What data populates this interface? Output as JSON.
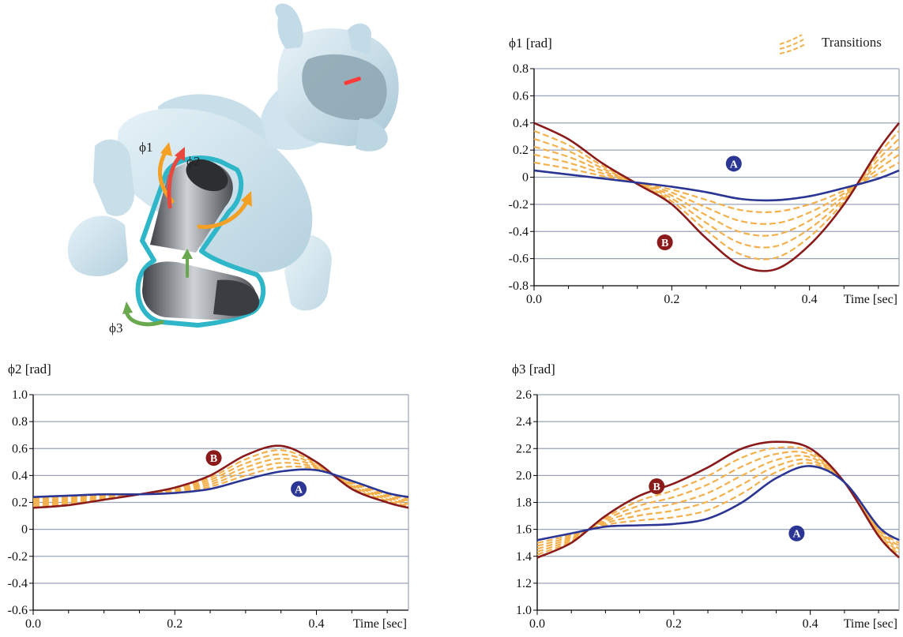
{
  "figure": {
    "robot": {
      "joint_labels": [
        "ϕ1",
        "ϕ2",
        "ϕ3"
      ],
      "colors": {
        "body": "#cfe4ee",
        "body_shade": "#a9c8d8",
        "leg_outline": "#2fb6c8",
        "leg_metal": "#5c6065",
        "arrow_orange": "#f4a024",
        "arrow_red": "#e8483e",
        "arrow_green": "#6aa84f"
      }
    },
    "legend": {
      "label": "Transitions"
    }
  },
  "chart_data": [
    {
      "type": "line",
      "id": "phi1",
      "ylabel": "ϕ1 [rad]",
      "xlabel": "Time [sec]",
      "xlim": [
        0,
        0.53
      ],
      "ylim": [
        -0.8,
        0.8
      ],
      "yticks": [
        -0.8,
        -0.6,
        -0.4,
        -0.2,
        0,
        0.2,
        0.4,
        0.6,
        0.8
      ],
      "ytick_labels": [
        "-0.8",
        "-0.6",
        "-0.4",
        "-0.2",
        "0",
        "0.2",
        "0.4",
        "0.6",
        "0.8"
      ],
      "xticks": [
        0,
        0.2,
        0.4
      ],
      "xtick_labels": [
        "0.0",
        "0.2",
        "0.4"
      ],
      "grid": true,
      "transition_count": 5,
      "series": [
        {
          "name": "A",
          "color": "#2b3594",
          "x": [
            0,
            0.05,
            0.1,
            0.15,
            0.2,
            0.25,
            0.3,
            0.35,
            0.4,
            0.45,
            0.5,
            0.53
          ],
          "y": [
            0.05,
            0.02,
            -0.01,
            -0.04,
            -0.07,
            -0.11,
            -0.16,
            -0.17,
            -0.14,
            -0.08,
            -0.01,
            0.05
          ]
        },
        {
          "name": "B",
          "color": "#8b1a1a",
          "x": [
            0,
            0.05,
            0.1,
            0.15,
            0.2,
            0.25,
            0.3,
            0.35,
            0.4,
            0.45,
            0.5,
            0.53
          ],
          "y": [
            0.4,
            0.28,
            0.1,
            -0.05,
            -0.2,
            -0.45,
            -0.65,
            -0.68,
            -0.5,
            -0.2,
            0.2,
            0.4
          ]
        }
      ],
      "markers": [
        {
          "label": "A",
          "series": "A",
          "x": 0.29,
          "y": 0.1
        },
        {
          "label": "B",
          "series": "B",
          "x": 0.19,
          "y": -0.48
        }
      ]
    },
    {
      "type": "line",
      "id": "phi2",
      "ylabel": "ϕ2 [rad]",
      "xlabel": "Time [sec]",
      "xlim": [
        0,
        0.53
      ],
      "ylim": [
        -0.6,
        1.0
      ],
      "yticks": [
        -0.6,
        -0.4,
        -0.2,
        0,
        0.2,
        0.4,
        0.6,
        0.8,
        1.0
      ],
      "ytick_labels": [
        "-0.6",
        "-0.4",
        "-0.2",
        "0",
        "0.2",
        "0.4",
        "0.6",
        "0.8",
        "1.0"
      ],
      "xticks": [
        0,
        0.2,
        0.4
      ],
      "xtick_labels": [
        "0.0",
        "0.2",
        "0.4"
      ],
      "grid": true,
      "transition_count": 5,
      "series": [
        {
          "name": "A",
          "color": "#2b3594",
          "x": [
            0,
            0.05,
            0.1,
            0.15,
            0.2,
            0.25,
            0.3,
            0.35,
            0.4,
            0.45,
            0.5,
            0.53
          ],
          "y": [
            0.24,
            0.25,
            0.26,
            0.26,
            0.27,
            0.3,
            0.37,
            0.43,
            0.44,
            0.36,
            0.27,
            0.24
          ]
        },
        {
          "name": "B",
          "color": "#8b1a1a",
          "x": [
            0,
            0.05,
            0.1,
            0.15,
            0.2,
            0.25,
            0.3,
            0.35,
            0.4,
            0.45,
            0.5,
            0.53
          ],
          "y": [
            0.16,
            0.18,
            0.22,
            0.26,
            0.31,
            0.4,
            0.55,
            0.62,
            0.5,
            0.3,
            0.2,
            0.16
          ]
        }
      ],
      "markers": [
        {
          "label": "B",
          "series": "B",
          "x": 0.255,
          "y": 0.53
        },
        {
          "label": "A",
          "series": "A",
          "x": 0.375,
          "y": 0.3
        }
      ]
    },
    {
      "type": "line",
      "id": "phi3",
      "ylabel": "ϕ3 [rad]",
      "xlabel": "Time [sec]",
      "xlim": [
        0,
        0.53
      ],
      "ylim": [
        1.0,
        2.6
      ],
      "yticks": [
        1.0,
        1.2,
        1.4,
        1.6,
        1.8,
        2.0,
        2.2,
        2.4,
        2.6
      ],
      "ytick_labels": [
        "1.0",
        "1.2",
        "1.4",
        "1.6",
        "1.8",
        "2.0",
        "2.2",
        "2.4",
        "2.6"
      ],
      "xticks": [
        0,
        0.2,
        0.4
      ],
      "xtick_labels": [
        "0.0",
        "0.2",
        "0.4"
      ],
      "grid": true,
      "transition_count": 5,
      "series": [
        {
          "name": "A",
          "color": "#2b3594",
          "x": [
            0,
            0.05,
            0.1,
            0.15,
            0.2,
            0.25,
            0.3,
            0.35,
            0.4,
            0.45,
            0.5,
            0.53
          ],
          "y": [
            1.52,
            1.57,
            1.62,
            1.63,
            1.64,
            1.68,
            1.8,
            1.98,
            2.07,
            1.95,
            1.62,
            1.52
          ]
        },
        {
          "name": "B",
          "color": "#8b1a1a",
          "x": [
            0,
            0.05,
            0.1,
            0.15,
            0.2,
            0.25,
            0.3,
            0.35,
            0.4,
            0.45,
            0.5,
            0.53
          ],
          "y": [
            1.39,
            1.5,
            1.7,
            1.85,
            1.94,
            2.06,
            2.2,
            2.25,
            2.2,
            1.95,
            1.55,
            1.39
          ]
        }
      ],
      "markers": [
        {
          "label": "B",
          "series": "B",
          "x": 0.175,
          "y": 1.92
        },
        {
          "label": "A",
          "series": "A",
          "x": 0.38,
          "y": 1.57
        }
      ]
    }
  ]
}
